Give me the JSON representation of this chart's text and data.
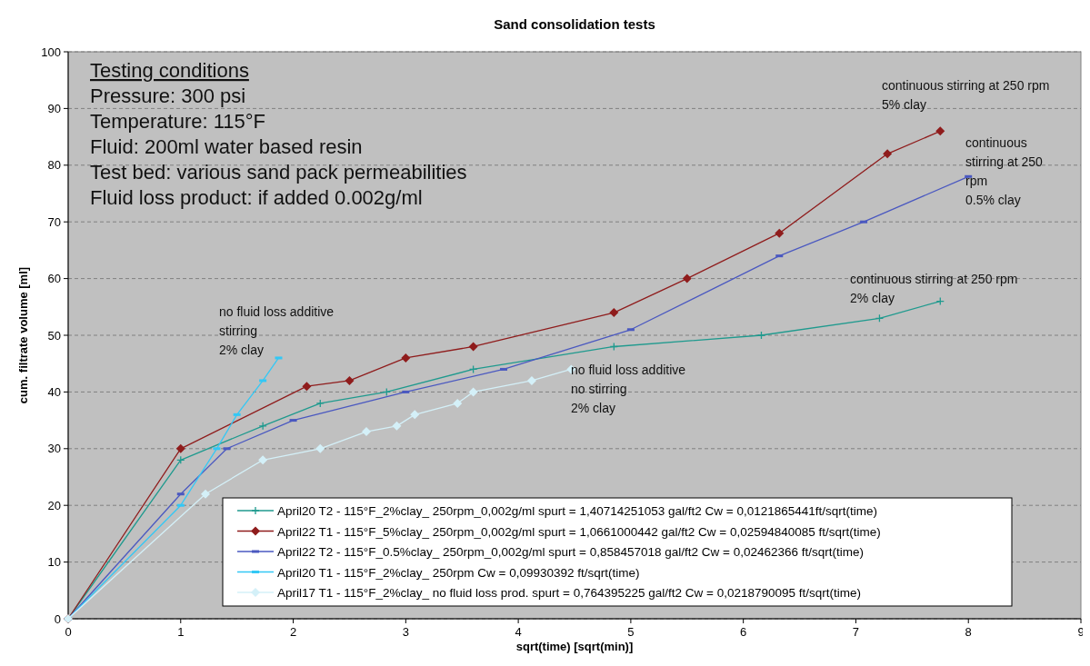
{
  "chart_data": {
    "type": "line",
    "title": "Sand consolidation tests",
    "xlabel": "sqrt(time) [sqrt(min)]",
    "ylabel": "cum. filtrate volume [ml]",
    "xlim": [
      0,
      9
    ],
    "xticks": [
      0,
      1,
      2,
      3,
      4,
      5,
      6,
      7,
      8,
      9
    ],
    "ylim": [
      0,
      100
    ],
    "yticks": [
      0,
      10,
      20,
      30,
      40,
      50,
      60,
      70,
      80,
      90,
      100
    ],
    "grid": "y",
    "legend": "bottom right",
    "series": [
      {
        "name": "April20 T2 - 115°F_2%clay_ 250rpm_0,002g/ml spurt = 1,40714251053 gal/ft2 Cw = 0,0121865441ft/sqrt(time)",
        "color": "#1f9a8e",
        "marker": "cross",
        "x": [
          0,
          1,
          1.73,
          2.24,
          2.83,
          3.6,
          4.85,
          6.16,
          7.21,
          7.75
        ],
        "values": [
          0,
          28,
          34,
          38,
          40,
          44,
          48,
          50,
          53,
          56
        ]
      },
      {
        "name": "April22 T1 - 115°F_5%clay_ 250rpm_0,002g/ml spurt = 1,0661000442 gal/ft2 Cw = 0,02594840085 ft/sqrt(time)",
        "color": "#8f1c1c",
        "marker": "diamond",
        "x": [
          0,
          1,
          2.12,
          2.5,
          3,
          3.6,
          4.85,
          5.5,
          6.32,
          7.28,
          7.75
        ],
        "values": [
          0,
          30,
          41,
          42,
          46,
          48,
          54,
          60,
          68,
          82,
          86
        ]
      },
      {
        "name": "April22 T2 - 115°F_0.5%clay_ 250rpm_0,002g/ml spurt = 0,858457018 gal/ft2 Cw = 0,02462366 ft/sqrt(time)",
        "color": "#4a58c0",
        "marker": "square",
        "x": [
          0,
          1,
          1.41,
          2,
          3,
          3.87,
          5,
          6.32,
          7.07,
          8
        ],
        "values": [
          0,
          22,
          30,
          35,
          40,
          44,
          51,
          64,
          70,
          78
        ]
      },
      {
        "name": "April20 T1 - 115°F_2%clay_ 250rpm Cw = 0,09930392 ft/sqrt(time)",
        "color": "#33c8f5",
        "marker": "square",
        "x": [
          0,
          1,
          1.32,
          1.5,
          1.73,
          1.87
        ],
        "values": [
          0,
          20,
          30,
          36,
          42,
          46
        ]
      },
      {
        "name": "April17 T1 - 115°F_2%clay_ no fluid loss prod. spurt = 0,764395225 gal/ft2 Cw = 0,0218790095 ft/sqrt(time)",
        "color": "#d4f0f8",
        "marker": "diamond",
        "x": [
          0,
          1.22,
          1.73,
          2.24,
          2.65,
          2.92,
          3.08,
          3.46,
          3.6,
          4.12,
          4.47
        ],
        "values": [
          0,
          22,
          28,
          30,
          33,
          34,
          36,
          38,
          40,
          42,
          44
        ]
      }
    ],
    "annotations": [
      "Testing conditions\nPressure: 300 psi\nTemperature: 115°F\nFluid: 200ml water based resin\nTest bed:  various sand pack permeabilities\nFluid loss product: if added 0.002g/ml",
      "continuous stirring at 250 rpm\n5% clay",
      "continuous\nstirring at 250\nrpm\n0.5% clay",
      "continuous stirring at 250 rpm\n2% clay",
      "no fluid loss additive\nstirring\n2% clay",
      "no fluid loss additive\nno stirring\n2% clay"
    ]
  }
}
